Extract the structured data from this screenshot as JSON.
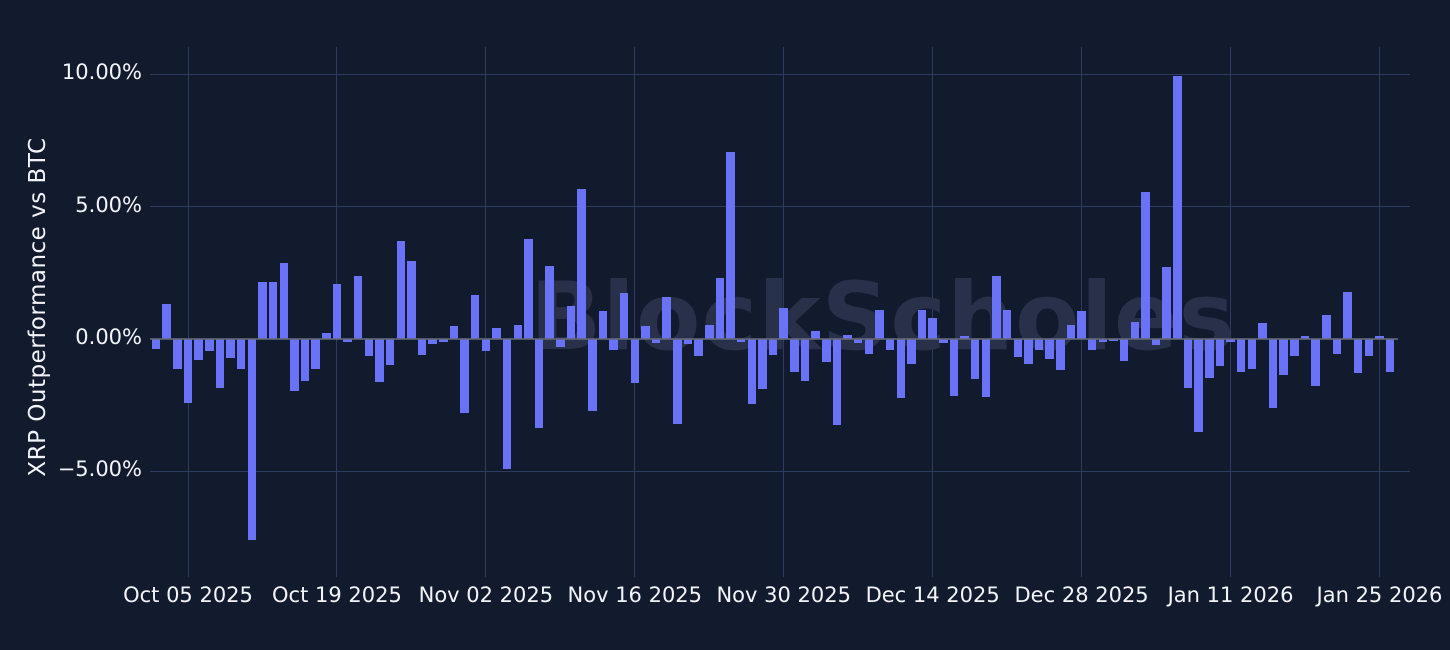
{
  "page": {
    "background_color": "#121b2d",
    "text_color": "#f2f4f8"
  },
  "watermark": {
    "label": "BlockScholes",
    "color": "#28304a"
  },
  "chart_data": {
    "type": "bar",
    "title": "",
    "xlabel": "",
    "ylabel": "XRP Outperformance vs BTC",
    "legend": null,
    "grid": true,
    "bar_color": "#6a73f8",
    "grid_color": "#2d3b61",
    "zero_line_color": "#646976",
    "ylim": [
      -9.0,
      11.0
    ],
    "y_ticks": [
      {
        "label": "10.00%",
        "value": 10
      },
      {
        "label": "5.00%",
        "value": 5
      },
      {
        "label": "0.00%",
        "value": 0
      },
      {
        "label": "−5.00%",
        "value": -5
      }
    ],
    "x_ticks": [
      {
        "label": "Oct 05 2025",
        "date": "2025-10-05"
      },
      {
        "label": "Oct 19 2025",
        "date": "2025-10-19"
      },
      {
        "label": "Nov 02 2025",
        "date": "2025-11-02"
      },
      {
        "label": "Nov 16 2025",
        "date": "2025-11-16"
      },
      {
        "label": "Nov 30 2025",
        "date": "2025-11-30"
      },
      {
        "label": "Dec 14 2025",
        "date": "2025-12-14"
      },
      {
        "label": "Dec 28 2025",
        "date": "2025-12-28"
      },
      {
        "label": "Jan 11 2026",
        "date": "2026-01-11"
      },
      {
        "label": "Jan 25 2026",
        "date": "2026-01-25"
      }
    ],
    "x": [
      "2025-10-02",
      "2025-10-03",
      "2025-10-04",
      "2025-10-05",
      "2025-10-06",
      "2025-10-07",
      "2025-10-08",
      "2025-10-09",
      "2025-10-10",
      "2025-10-11",
      "2025-10-12",
      "2025-10-13",
      "2025-10-14",
      "2025-10-15",
      "2025-10-16",
      "2025-10-17",
      "2025-10-18",
      "2025-10-19",
      "2025-10-20",
      "2025-10-21",
      "2025-10-22",
      "2025-10-23",
      "2025-10-24",
      "2025-10-25",
      "2025-10-26",
      "2025-10-27",
      "2025-10-28",
      "2025-10-29",
      "2025-10-30",
      "2025-10-31",
      "2025-11-01",
      "2025-11-02",
      "2025-11-03",
      "2025-11-04",
      "2025-11-05",
      "2025-11-06",
      "2025-11-07",
      "2025-11-08",
      "2025-11-09",
      "2025-11-10",
      "2025-11-11",
      "2025-11-12",
      "2025-11-13",
      "2025-11-14",
      "2025-11-15",
      "2025-11-16",
      "2025-11-17",
      "2025-11-18",
      "2025-11-19",
      "2025-11-20",
      "2025-11-21",
      "2025-11-22",
      "2025-11-23",
      "2025-11-24",
      "2025-11-25",
      "2025-11-26",
      "2025-11-27",
      "2025-11-28",
      "2025-11-29",
      "2025-11-30",
      "2025-12-01",
      "2025-12-02",
      "2025-12-03",
      "2025-12-04",
      "2025-12-05",
      "2025-12-06",
      "2025-12-07",
      "2025-12-08",
      "2025-12-09",
      "2025-12-10",
      "2025-12-11",
      "2025-12-12",
      "2025-12-13",
      "2025-12-14",
      "2025-12-15",
      "2025-12-16",
      "2025-12-17",
      "2025-12-18",
      "2025-12-19",
      "2025-12-20",
      "2025-12-21",
      "2025-12-22",
      "2025-12-23",
      "2025-12-24",
      "2025-12-25",
      "2025-12-26",
      "2025-12-27",
      "2025-12-28",
      "2025-12-29",
      "2025-12-30",
      "2025-12-31",
      "2026-01-01",
      "2026-01-02",
      "2026-01-03",
      "2026-01-04",
      "2026-01-05",
      "2026-01-06",
      "2026-01-07",
      "2026-01-08",
      "2026-01-09",
      "2026-01-10",
      "2026-01-11",
      "2026-01-12",
      "2026-01-13",
      "2026-01-14",
      "2026-01-15",
      "2026-01-16",
      "2026-01-17",
      "2026-01-18",
      "2026-01-19",
      "2026-01-20",
      "2026-01-21",
      "2026-01-22",
      "2026-01-23",
      "2026-01-24",
      "2026-01-25",
      "2026-01-26"
    ],
    "values": [
      -0.38,
      1.32,
      -1.15,
      -2.41,
      -0.78,
      -0.46,
      -1.84,
      -0.71,
      -1.15,
      -7.6,
      2.14,
      2.14,
      2.87,
      -1.97,
      -1.6,
      -1.13,
      0.23,
      2.09,
      -0.1,
      2.37,
      -0.65,
      -1.63,
      -0.97,
      3.71,
      2.96,
      -0.59,
      -0.2,
      -0.1,
      0.48,
      -2.79,
      1.67,
      -0.47,
      0.41,
      -4.91,
      0.54,
      3.77,
      -3.36,
      2.77,
      -0.3,
      1.23,
      5.66,
      -2.71,
      1.07,
      -0.4,
      1.74,
      -1.66,
      0.48,
      -0.15,
      1.59,
      -3.2,
      -0.2,
      -0.66,
      0.52,
      2.3,
      7.06,
      -0.1,
      -2.44,
      -1.89,
      -0.59,
      1.17,
      -1.26,
      -1.6,
      0.29,
      -0.88,
      -3.24,
      0.15,
      -0.17,
      -0.57,
      1.08,
      -0.4,
      -2.23,
      -0.93,
      1.08,
      0.79,
      -0.15,
      -2.17,
      0.1,
      -1.51,
      -2.19,
      2.37,
      1.08,
      -0.68,
      -0.93,
      -0.43,
      -0.75,
      -1.18,
      0.52,
      1.07,
      -0.43,
      -0.13,
      -0.08,
      -0.84,
      0.63,
      5.54,
      -0.21,
      2.72,
      9.94,
      -1.85,
      -3.52,
      -1.47,
      -1.01,
      -0.1,
      -1.26,
      -1.13,
      0.6,
      -2.61,
      -1.35,
      -0.65,
      0.13,
      -1.76,
      0.92,
      -0.55,
      1.78,
      -1.28,
      -0.63,
      0.1,
      -1.26
    ]
  }
}
